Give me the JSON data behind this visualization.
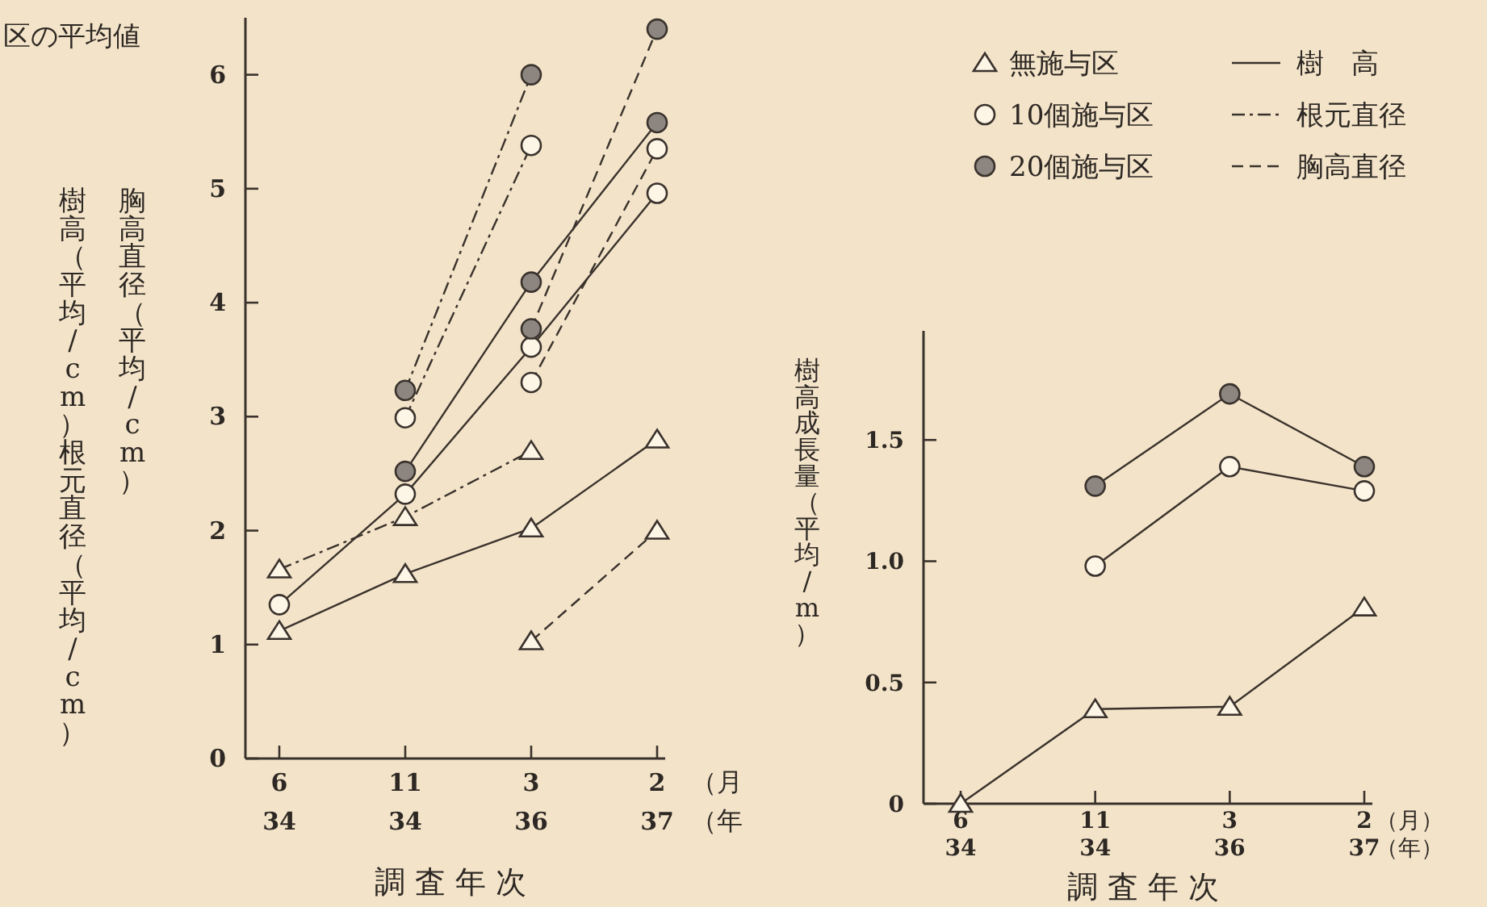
{
  "chart_data": [
    {
      "type": "line",
      "title": "区の平均値",
      "ylabel": "樹高（平均/cm）根元直径（平均/cm）",
      "xlabel": "調査年次",
      "annotations": [
        "胸高直径（平均/cm）",
        "（月",
        "（年"
      ],
      "categories": [
        "6\n34",
        "11\n34",
        "3\n36",
        "2\n37"
      ],
      "ylim": [
        0,
        6.5
      ],
      "yticks": [
        0,
        1,
        2,
        3,
        4,
        5,
        6
      ],
      "grid": false,
      "legend": "top right",
      "series": [
        {
          "name": "樹　高",
          "color": "#fdf5e6",
          "marker": "triangle",
          "line_style": "solid",
          "values": [
            1.12,
            1.62,
            2.02,
            2.8
          ]
        },
        {
          "name": "根元直径",
          "color": "#fdf5e6",
          "marker": "triangle",
          "line_style": "dotted",
          "values": [
            1.66,
            2.12,
            2.7,
            null
          ]
        },
        {
          "name": "胸高直径",
          "color": "#fdf5e6",
          "marker": "triangle",
          "line_style": "dashed",
          "values": [
            null,
            null,
            1.03,
            2.0
          ]
        },
        {
          "color": "#fdf5e6",
          "marker": "circle",
          "line_style": "solid",
          "values": [
            1.35,
            2.32,
            3.61,
            4.96
          ]
        },
        {
          "color": "#fdf5e6",
          "marker": "circle",
          "line_style": "dotted",
          "values": [
            null,
            2.99,
            5.38,
            null
          ]
        },
        {
          "color": "#fdf5e6",
          "marker": "circle",
          "line_style": "dashed",
          "values": [
            null,
            null,
            3.3,
            5.35
          ]
        },
        {
          "color": "#8c8580",
          "marker": "circle",
          "line_style": "solid",
          "values": [
            null,
            2.52,
            4.18,
            5.58
          ]
        },
        {
          "color": "#8c8580",
          "marker": "circle",
          "line_style": "dotted",
          "values": [
            null,
            3.23,
            6.0,
            null
          ]
        },
        {
          "color": "#8c8580",
          "marker": "circle",
          "line_style": "dashed",
          "values": [
            null,
            null,
            3.77,
            6.4
          ]
        }
      ]
    },
    {
      "type": "line",
      "ylabel": "樹高成長量（平均/m）",
      "xlabel": "調査年次",
      "annotations": [
        "（月）",
        "（年）"
      ],
      "categories": [
        "6\n34",
        "11\n34",
        "3\n36",
        "2\n37"
      ],
      "ylim": [
        0,
        1.95
      ],
      "yticks": [
        0,
        0.5,
        {
          "value": 1.0,
          "label": "1.0"
        },
        1.5
      ],
      "grid": false,
      "legend": "top left",
      "series": [
        {
          "name": "無施与区",
          "color": "#fdf5e6",
          "marker": "triangle",
          "line_style": "solid",
          "values": [
            0,
            0.39,
            0.4,
            0.81
          ]
        },
        {
          "name": "10個施与区",
          "color": "#fdf5e6",
          "marker": "circle",
          "line_style": "solid",
          "values": [
            null,
            0.98,
            1.39,
            1.29
          ]
        },
        {
          "name": "20個施与区",
          "color": "#8c8580",
          "marker": "circle",
          "line_style": "solid",
          "values": [
            null,
            1.31,
            1.69,
            1.39
          ]
        }
      ]
    }
  ]
}
